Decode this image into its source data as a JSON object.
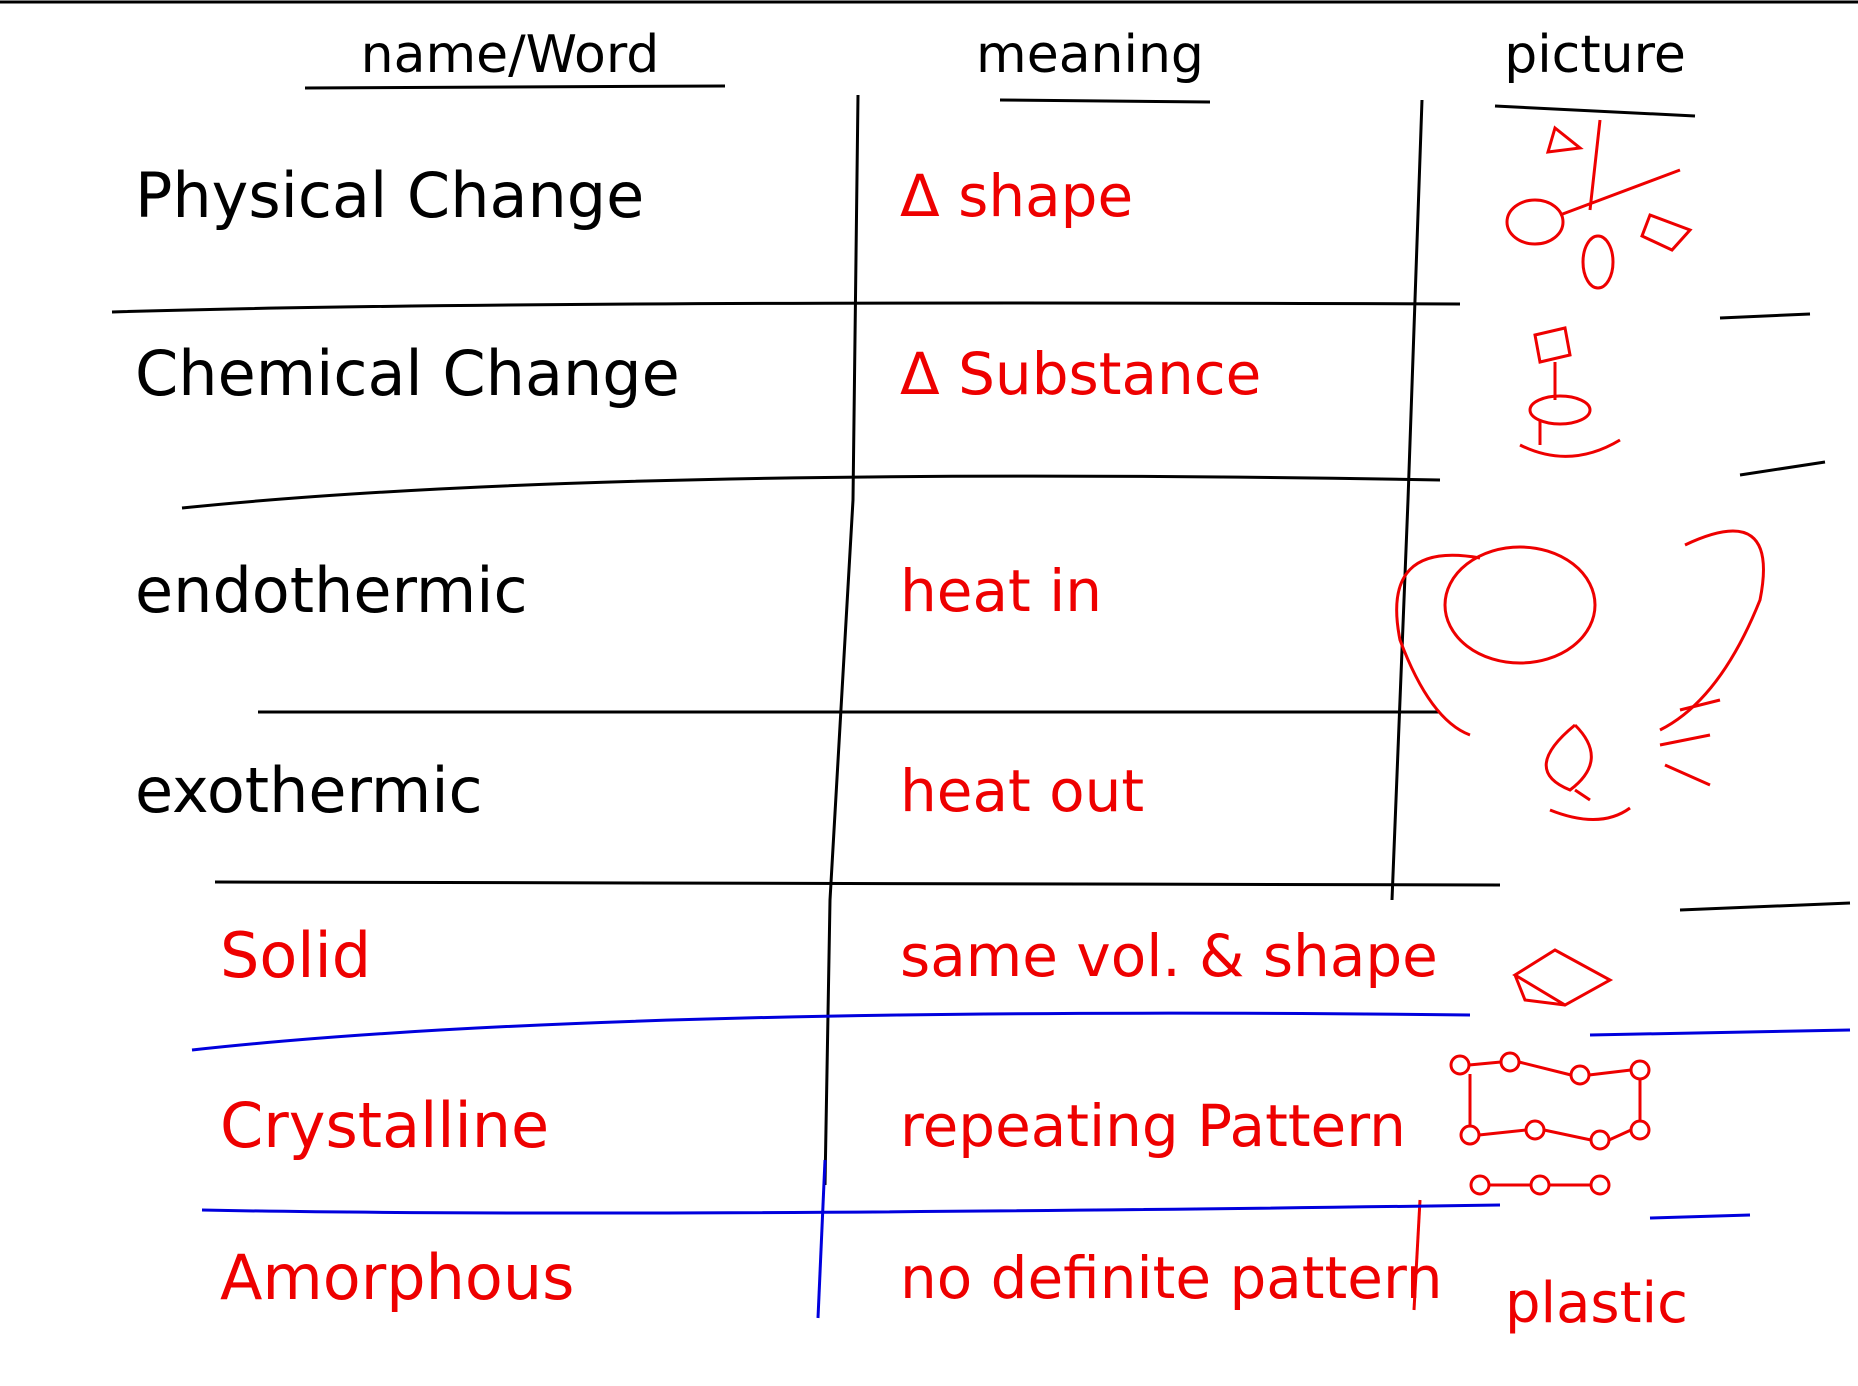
{
  "header": {
    "columns": [
      "name/Word",
      "meaning",
      "picture"
    ]
  },
  "rows": [
    {
      "name": "Physical Change",
      "meaning": "Δ shape"
    },
    {
      "name": "Chemical Change",
      "meaning": "Δ Substance"
    },
    {
      "name": "endothermic",
      "meaning": "heat in"
    },
    {
      "name": "exothermic",
      "meaning": "heat out"
    },
    {
      "name": "Solid",
      "meaning": "same vol. & shape"
    },
    {
      "name": "Crystalline",
      "meaning": "repeating Pattern"
    },
    {
      "name": "Amorphous",
      "meaning": "no definite pattern",
      "picture": "plastic"
    }
  ]
}
